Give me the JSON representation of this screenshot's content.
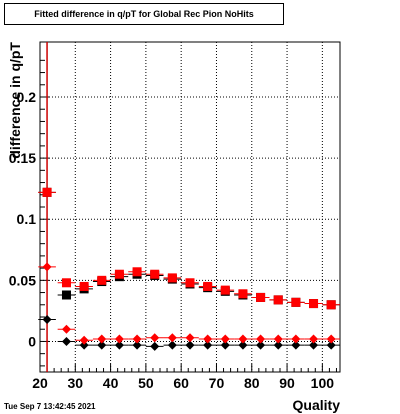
{
  "window": {
    "title": "Fitted difference in q/pT for Global Rec Pion NoHits",
    "timestamp": "Tue Sep  7 13:42:45 2021"
  },
  "chart_data": {
    "type": "scatter",
    "title": "Fitted difference in q/pT for Global Rec Pion NoHits",
    "xlabel": "Quality",
    "ylabel": "difference in q/pT",
    "xlim": [
      20,
      105
    ],
    "ylim": [
      -0.025,
      0.245
    ],
    "xticks": [
      "20",
      "30",
      "40",
      "50",
      "60",
      "70",
      "80",
      "90",
      "100"
    ],
    "yticks": [
      "0",
      "0.05",
      "0.1",
      "0.15",
      "0.2"
    ],
    "grid": true,
    "vertical_line_x": 22,
    "x": [
      22,
      27.5,
      32.5,
      37.5,
      42.5,
      47.5,
      52.5,
      57.5,
      62.5,
      67.5,
      72.5,
      77.5,
      82.5,
      87.5,
      92.5,
      97.5,
      102.5
    ],
    "series": [
      {
        "marker": "square",
        "color": "#000000",
        "values": [
          0.122,
          0.038,
          0.043,
          0.049,
          0.053,
          0.055,
          0.054,
          0.051,
          0.047,
          0.044,
          0.041,
          0.038,
          0.036,
          0.034,
          0.032,
          0.031,
          0.03
        ]
      },
      {
        "marker": "square",
        "color": "#ff0000",
        "values": [
          0.122,
          0.048,
          0.045,
          0.05,
          0.055,
          0.057,
          0.055,
          0.052,
          0.048,
          0.045,
          0.042,
          0.039,
          0.036,
          0.034,
          0.032,
          0.031,
          0.03
        ]
      },
      {
        "marker": "diamond",
        "color": "#000000",
        "values": [
          0.018,
          0.0,
          -0.003,
          -0.003,
          -0.003,
          -0.003,
          -0.004,
          -0.003,
          -0.003,
          -0.003,
          -0.003,
          -0.003,
          -0.003,
          -0.003,
          -0.003,
          -0.003,
          -0.003
        ]
      },
      {
        "marker": "diamond",
        "color": "#ff0000",
        "values": [
          0.061,
          0.01,
          0.001,
          0.002,
          0.002,
          0.002,
          0.003,
          0.003,
          0.003,
          0.002,
          0.002,
          0.002,
          0.002,
          0.002,
          0.002,
          0.002,
          0.002
        ]
      }
    ]
  }
}
